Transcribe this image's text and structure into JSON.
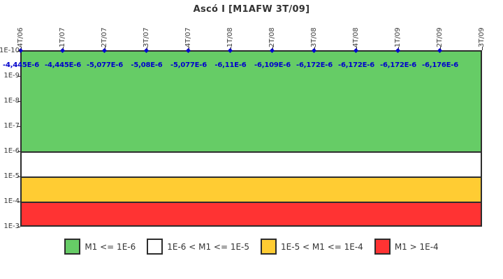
{
  "title": "Ascó I [M1AFW 3T/09]",
  "colors": {
    "band_green": "#66CC66",
    "band_white": "#FFFFFF",
    "band_yellow": "#FFCC33",
    "band_red": "#FF3333",
    "series_blue": "#0000CC",
    "axis_border": "#2d2d2d",
    "tick_text": "#3a3a3a"
  },
  "y_axis_ticks": [
    "1E-10",
    "1E-9",
    "1E-8",
    "1E-7",
    "1E-6",
    "1E-5",
    "1E-4",
    "1E-3"
  ],
  "x_axis_ticks": [
    "4T/06",
    "1T/07",
    "2T/07",
    "3T/07",
    "4T/07",
    "1T/08",
    "2T/08",
    "3T/08",
    "4T/08",
    "1T/09",
    "2T/09",
    "3T/09"
  ],
  "point_labels": [
    "-4,445E-6",
    "-4,445E-6",
    "-5,077E-6",
    "-5,08E-6",
    "-5,077E-6",
    "-6,11E-6",
    "-6,109E-6",
    "-6,172E-6",
    "-6,172E-6",
    "-6,172E-6",
    "-6,176E-6"
  ],
  "legend": [
    {
      "label": "M1 <= 1E-6",
      "color": "#66CC66"
    },
    {
      "label": "1E-6 < M1 <= 1E-5",
      "color": "#FFFFFF"
    },
    {
      "label": "1E-5 < M1 <= 1E-4",
      "color": "#FFCC33"
    },
    {
      "label": "M1 > 1E-4",
      "color": "#FF3333"
    }
  ],
  "chart_data": {
    "type": "line",
    "title": "Ascó I [M1AFW 3T/09]",
    "x": [
      "4T/06",
      "1T/07",
      "2T/07",
      "3T/07",
      "4T/07",
      "1T/08",
      "2T/08",
      "3T/08",
      "4T/08",
      "1T/09",
      "2T/09",
      "3T/09"
    ],
    "series": [
      {
        "name": "M1",
        "values": [
          -4.445e-06,
          -4.445e-06,
          -5.077e-06,
          -5.08e-06,
          -5.077e-06,
          -6.11e-06,
          -6.109e-06,
          -6.172e-06,
          -6.172e-06,
          -6.172e-06,
          -6.176e-06,
          null
        ],
        "display_values": [
          "-4,445E-6",
          "-4,445E-6",
          "-5,077E-6",
          "-5,08E-6",
          "-5,077E-6",
          "-6,11E-6",
          "-6,109E-6",
          "-6,172E-6",
          "-6,172E-6",
          "-6,172E-6",
          "-6,176E-6",
          null
        ],
        "marker": "diamond",
        "color": "#0000CC",
        "note": "values below axis minimum; markers clamped to top line at 1E-10"
      }
    ],
    "y_scale": "log",
    "y_inverted": true,
    "ylim": [
      "1E-10",
      "1E-3"
    ],
    "y_ticks": [
      "1E-10",
      "1E-9",
      "1E-8",
      "1E-7",
      "1E-6",
      "1E-5",
      "1E-4",
      "1E-3"
    ],
    "grid": false,
    "legend_position": "bottom",
    "bands": [
      {
        "label": "M1 <= 1E-6",
        "from": "1E-10",
        "to": "1E-6",
        "color": "#66CC66"
      },
      {
        "label": "1E-6 < M1 <= 1E-5",
        "from": "1E-6",
        "to": "1E-5",
        "color": "#FFFFFF"
      },
      {
        "label": "1E-5 < M1 <= 1E-4",
        "from": "1E-5",
        "to": "1E-4",
        "color": "#FFCC33"
      },
      {
        "label": "M1 > 1E-4",
        "from": "1E-4",
        "to": "1E-3",
        "color": "#FF3333"
      }
    ]
  }
}
